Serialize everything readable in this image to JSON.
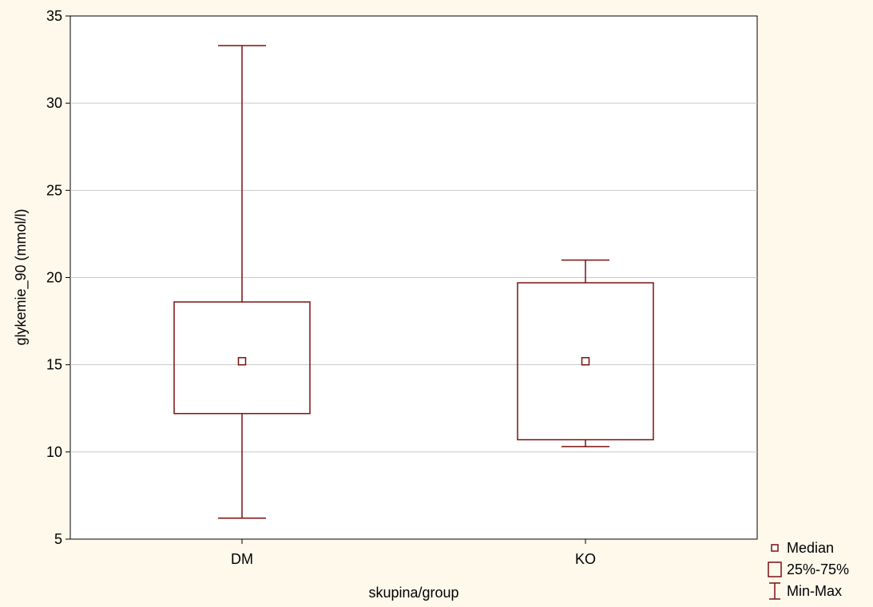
{
  "chart_data": {
    "type": "boxplot",
    "title": "",
    "xlabel": "skupina/group",
    "ylabel": "glykemie_90 (mmol/l)",
    "ylim": [
      5,
      35
    ],
    "yticks": [
      5,
      10,
      15,
      20,
      25,
      30,
      35
    ],
    "grid": true,
    "legend_position": "bottom-right",
    "colors": {
      "box": "#7a1010",
      "grid": "#c8c8c8",
      "background": "#fff9ec",
      "plot_background": "#ffffff"
    },
    "categories": [
      "DM",
      "KO"
    ],
    "series": [
      {
        "category": "DM",
        "min": 6.2,
        "q1": 12.2,
        "median": 15.2,
        "q3": 18.6,
        "max": 33.3
      },
      {
        "category": "KO",
        "min": 10.3,
        "q1": 10.7,
        "median": 15.2,
        "q3": 19.7,
        "max": 21.0
      }
    ],
    "legend": [
      {
        "symbol": "median",
        "label": "Median"
      },
      {
        "symbol": "box",
        "label": "25%-75%"
      },
      {
        "symbol": "whisker",
        "label": "Min-Max"
      }
    ]
  }
}
